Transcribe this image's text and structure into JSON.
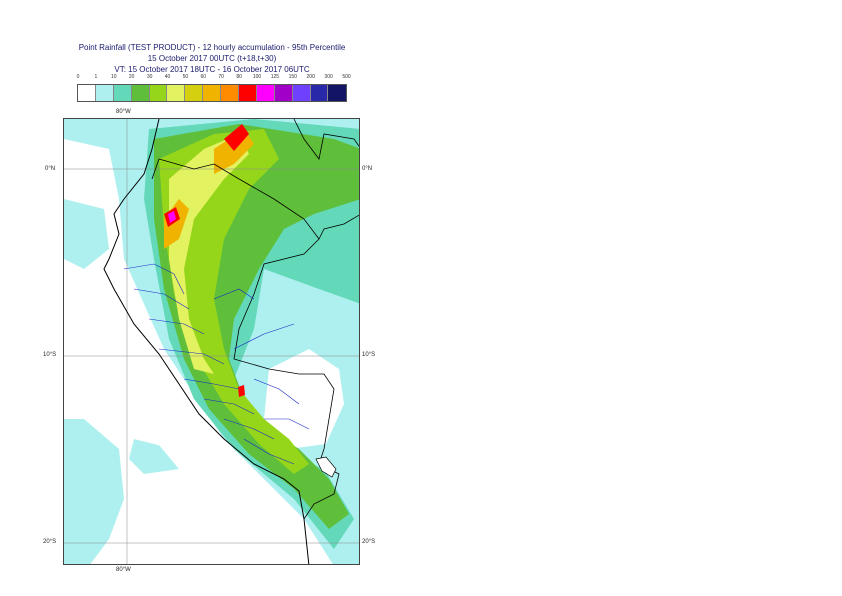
{
  "title": {
    "line1": "Point Rainfall (TEST PRODUCT) - 12 hourly accumulation - 95th Percentile",
    "line2": "15 October 2017 00UTC (t+18,t+30)",
    "line3": "VT: 15 October 2017 18UTC - 16 October 2017 06UTC"
  },
  "legend": {
    "ticks": [
      "0",
      "1",
      "10",
      "20",
      "30",
      "40",
      "50",
      "60",
      "70",
      "80",
      "100",
      "125",
      "150",
      "200",
      "300",
      "500"
    ],
    "colors": [
      "#ffffff",
      "#aef0f0",
      "#63d9b9",
      "#5fbf3a",
      "#96d61a",
      "#e2f260",
      "#d4d010",
      "#f0b400",
      "#ff8c00",
      "#ff0000",
      "#ff00ff",
      "#a000c8",
      "#7040ff",
      "#2828a8",
      "#141464"
    ]
  },
  "map": {
    "lon_top": "80°W",
    "lon_bottom": "80°W",
    "lat_labels_left": [
      "0°N",
      "10°S",
      "20°S"
    ],
    "lat_labels_right": [
      "0°N",
      "10°S",
      "20°S"
    ],
    "colors": {
      "ocean_light": "#aef0f0",
      "land_light": "#63d9b9",
      "green": "#5fbf3a",
      "yellow_green": "#96d61a",
      "yellow": "#e2f260",
      "orange": "#f0b400",
      "red": "#ff0000",
      "magenta": "#ff00ff",
      "coast": "#000000",
      "admin": "#1a28c8"
    }
  }
}
